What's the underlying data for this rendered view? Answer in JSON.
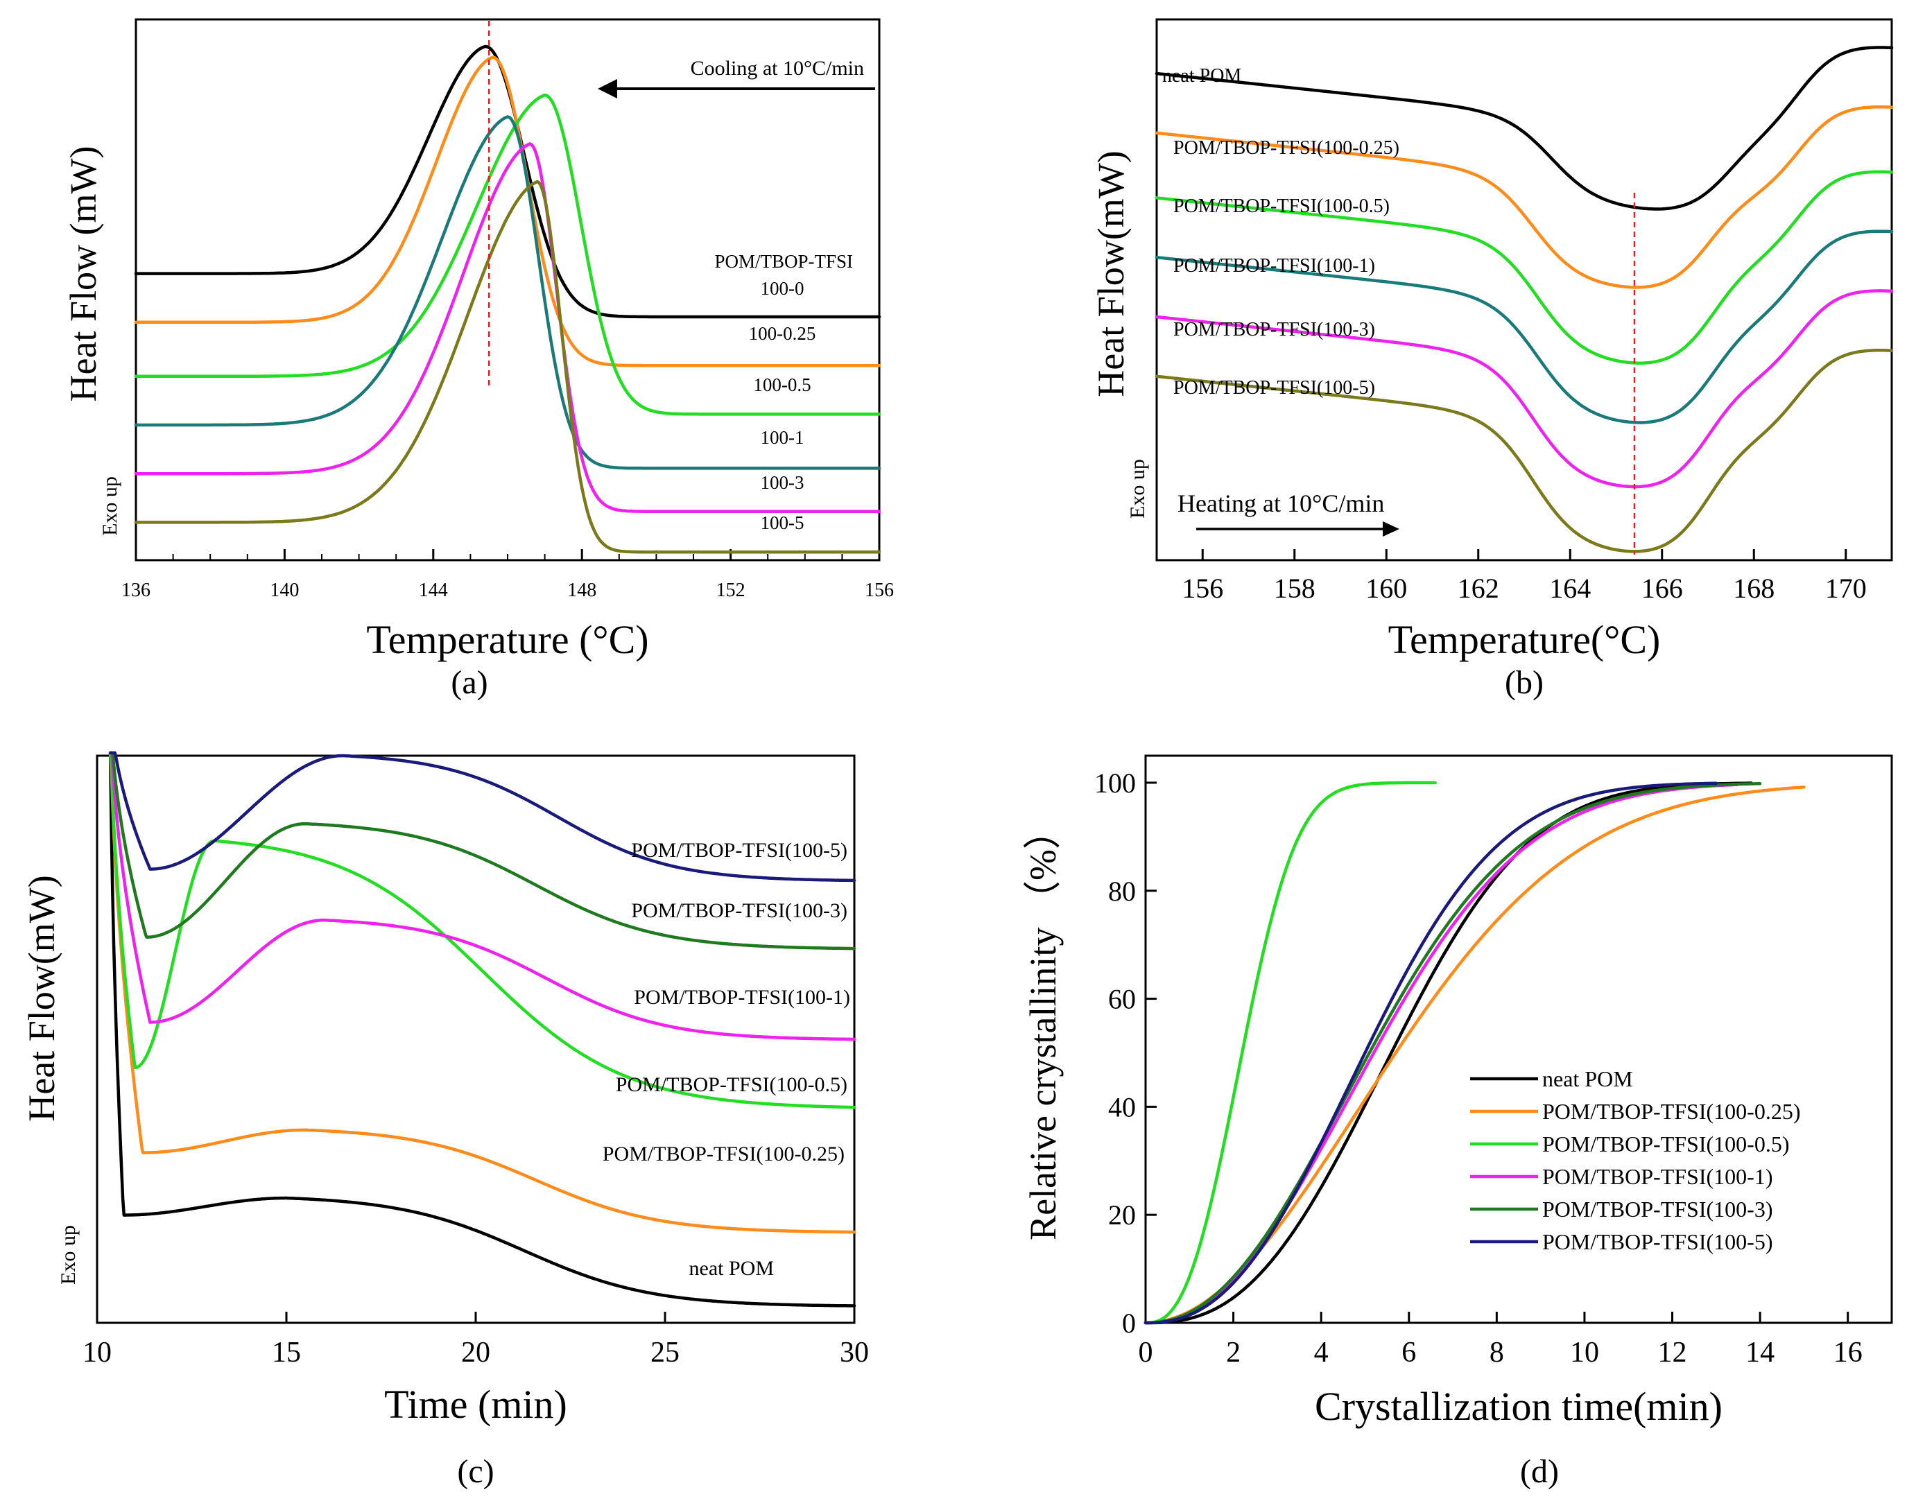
{
  "figure": {
    "panel_labels": [
      "(a)",
      "(b)",
      "(c)",
      "(d)"
    ]
  },
  "chart_data": [
    {
      "panel": "(a)",
      "type": "line",
      "title": "",
      "xlabel": "Temperature (°C)",
      "ylabel": "Heat Flow (mW)",
      "exo_label": "Exo up",
      "xlim": [
        136,
        156
      ],
      "ylim": [
        0,
        100
      ],
      "xticks": [
        136,
        140,
        144,
        148,
        152,
        156
      ],
      "xtick_minor": 1,
      "annotation": "Cooling at 10°C/min",
      "legend_title": "POM/TBOP-TFSI",
      "dashed_x": 145.5,
      "series": [
        {
          "name": "100-0",
          "color": "#000000",
          "base_left": 53,
          "base_right": 45,
          "peak_x": 145.4,
          "peak_h": 95,
          "width_left": 2.3,
          "width_right": 1.45
        },
        {
          "name": "100-0.25",
          "color": "#FF8C1A",
          "base_left": 44,
          "base_right": 36,
          "peak_x": 145.6,
          "peak_h": 93,
          "width_left": 2.3,
          "width_right": 1.3
        },
        {
          "name": "100-0.5",
          "color": "#22DD22",
          "base_left": 34,
          "base_right": 27,
          "peak_x": 147.0,
          "peak_h": 86,
          "width_left": 2.8,
          "width_right": 1.35
        },
        {
          "name": "100-1",
          "color": "#1A7A7A",
          "base_left": 25,
          "base_right": 17,
          "peak_x": 146.0,
          "peak_h": 82,
          "width_left": 2.7,
          "width_right": 1.15
        },
        {
          "name": "100-3",
          "color": "#EE22EE",
          "base_left": 16,
          "base_right": 9,
          "peak_x": 146.6,
          "peak_h": 77,
          "width_left": 2.75,
          "width_right": 1.0
        },
        {
          "name": "100-5",
          "color": "#7A7A1A",
          "base_left": 7,
          "base_right": 1.5,
          "peak_x": 146.8,
          "peak_h": 70,
          "width_left": 2.9,
          "width_right": 0.9
        }
      ]
    },
    {
      "panel": "(b)",
      "type": "line",
      "title": "",
      "xlabel": "Temperature(°C)",
      "ylabel": "Heat Flow(mW)",
      "exo_label": "Exo up",
      "xlim": [
        155,
        171
      ],
      "ylim": [
        0,
        100
      ],
      "xticks": [
        156,
        158,
        160,
        162,
        164,
        166,
        168,
        170
      ],
      "annotation": "Heating at 10°C/min",
      "dashed_x": 165.4,
      "series": [
        {
          "name": "neat POM",
          "color": "#000000",
          "base_left": 90,
          "base_right": 95,
          "dip_x": 165.2,
          "dip_depth": 16
        },
        {
          "name": "POM/TBOP-TFSI(100-0.25)",
          "color": "#FF8C1A",
          "base_left": 79,
          "base_right": 84,
          "dip_x": 164.8,
          "dip_depth": 20
        },
        {
          "name": "POM/TBOP-TFSI(100-0.5)",
          "color": "#22DD22",
          "base_left": 67,
          "base_right": 72,
          "dip_x": 164.9,
          "dip_depth": 22
        },
        {
          "name": "POM/TBOP-TFSI(100-1)",
          "color": "#1A7A7A",
          "base_left": 56,
          "base_right": 61,
          "dip_x": 164.9,
          "dip_depth": 22
        },
        {
          "name": "POM/TBOP-TFSI(100-3)",
          "color": "#EE22EE",
          "base_left": 45,
          "base_right": 50,
          "dip_x": 164.8,
          "dip_depth": 23
        },
        {
          "name": "POM/TBOP-TFSI(100-5)",
          "color": "#7A7A1A",
          "base_left": 34,
          "base_right": 39,
          "dip_x": 164.8,
          "dip_depth": 24
        }
      ]
    },
    {
      "panel": "(c)",
      "type": "line",
      "title": "",
      "xlabel": "Time (min)",
      "ylabel": "Heat Flow(mW)",
      "exo_label": "Exo up",
      "xlim": [
        10,
        30
      ],
      "ylim": [
        0,
        100
      ],
      "xticks": [
        10,
        15,
        20,
        25,
        30
      ],
      "series": [
        {
          "name": "neat POM",
          "color": "#000000",
          "min_x": 10.7,
          "min_y": 19,
          "hump_x": 15.0,
          "hump_y": 22,
          "end_y": 3
        },
        {
          "name": "POM/TBOP-TFSI(100-0.25)",
          "color": "#FF8C1A",
          "min_x": 11.2,
          "min_y": 30,
          "hump_x": 15.5,
          "hump_y": 34,
          "end_y": 16
        },
        {
          "name": "POM/TBOP-TFSI(100-0.5)",
          "color": "#22DD22",
          "min_x": 11.0,
          "min_y": 45,
          "hump_x": 13.1,
          "hump_y": 85,
          "end_y": 38
        },
        {
          "name": "POM/TBOP-TFSI(100-1)",
          "color": "#EE22EE",
          "min_x": 11.4,
          "min_y": 53,
          "hump_x": 16.0,
          "hump_y": 71,
          "end_y": 50
        },
        {
          "name": "POM/TBOP-TFSI(100-3)",
          "color": "#1F7A1F",
          "min_x": 11.3,
          "min_y": 68,
          "hump_x": 15.5,
          "hump_y": 88,
          "end_y": 66
        },
        {
          "name": "POM/TBOP-TFSI(100-5)",
          "color": "#1A1A7A",
          "min_x": 11.4,
          "min_y": 80,
          "hump_x": 16.5,
          "hump_y": 100,
          "end_y": 78
        }
      ]
    },
    {
      "panel": "(d)",
      "type": "line",
      "title": "",
      "xlabel": "Crystallization time(min)",
      "ylabel": "Relative crystallinity （%）",
      "xlim": [
        0,
        17
      ],
      "ylim": [
        0,
        105
      ],
      "xticks": [
        0,
        2,
        4,
        6,
        8,
        10,
        12,
        14,
        16
      ],
      "yticks": [
        0,
        20,
        40,
        60,
        80,
        100
      ],
      "legend_location": "lower-right",
      "series": [
        {
          "name": "neat POM",
          "color": "#000000",
          "t_half": 5.6,
          "n": 2.6,
          "t_end": 13.8
        },
        {
          "name": "POM/TBOP-TFSI(100-0.25)",
          "color": "#FF8C1A",
          "t_half": 5.7,
          "n": 2.0,
          "t_end": 15.0
        },
        {
          "name": "POM/TBOP-TFSI(100-0.5)",
          "color": "#22DD22",
          "t_half": 2.2,
          "n": 2.6,
          "t_end": 6.6
        },
        {
          "name": "POM/TBOP-TFSI(100-1)",
          "color": "#EE22EE",
          "t_half": 5.2,
          "n": 2.2,
          "t_end": 13.5
        },
        {
          "name": "POM/TBOP-TFSI(100-3)",
          "color": "#1F7A1F",
          "t_half": 5.1,
          "n": 2.2,
          "t_end": 14.0
        },
        {
          "name": "POM/TBOP-TFSI(100-5)",
          "color": "#1A1A7A",
          "t_half": 5.0,
          "n": 2.4,
          "t_end": 13.0
        }
      ]
    }
  ]
}
